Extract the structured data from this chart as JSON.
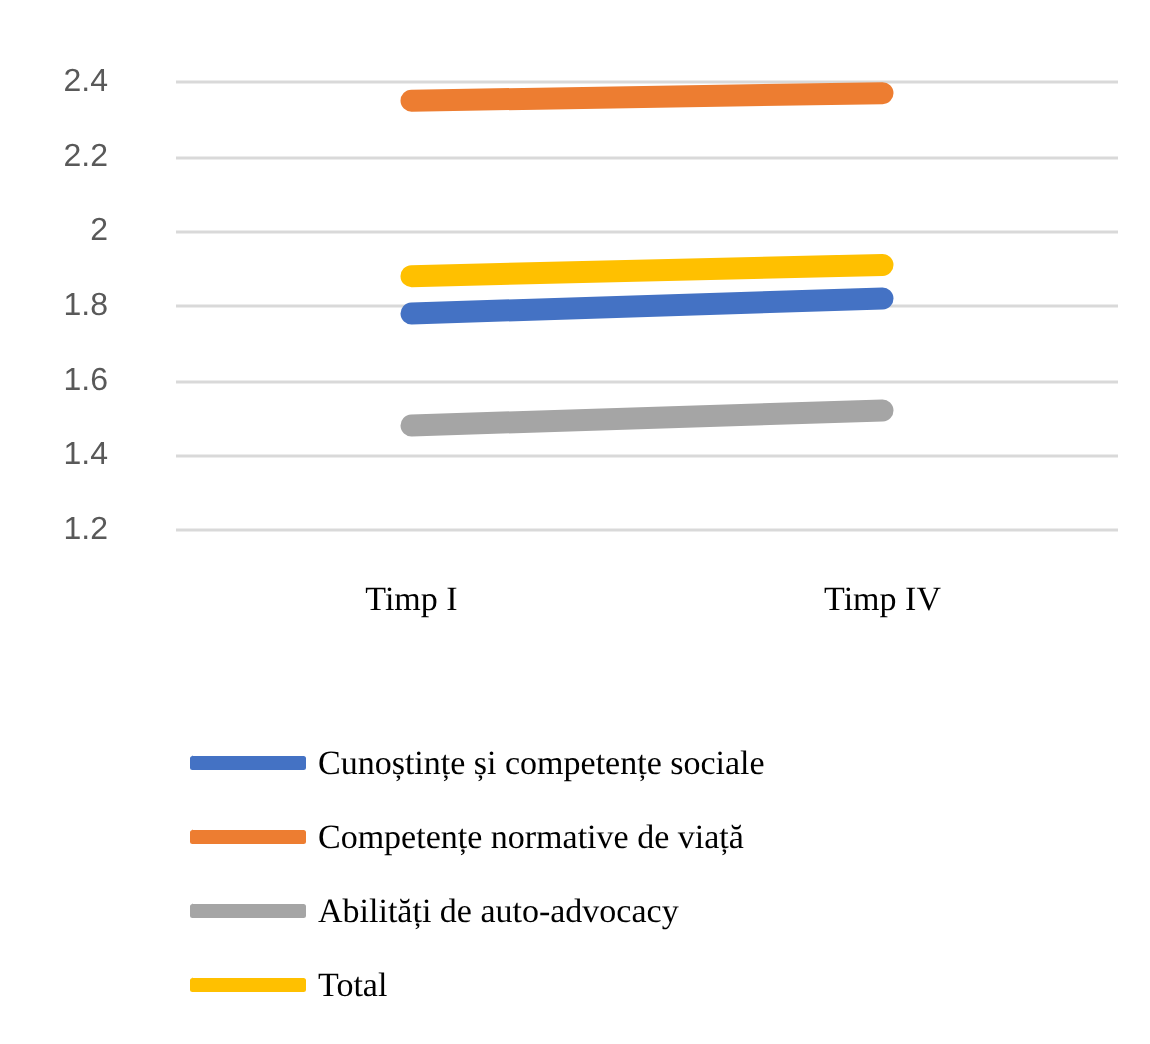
{
  "chart_data": {
    "type": "line",
    "categories": [
      "Timp I",
      "Timp IV"
    ],
    "series": [
      {
        "name": "Cunoștințe și competențe sociale",
        "color": "#4472c4",
        "values": [
          1.78,
          1.82
        ]
      },
      {
        "name": "Competențe normative de viață",
        "color": "#ed7d31",
        "values": [
          2.35,
          2.37
        ]
      },
      {
        "name": "Abilități de auto-advocacy",
        "color": "#a5a5a5",
        "values": [
          1.48,
          1.52
        ]
      },
      {
        "name": "Total",
        "color": "#ffc000",
        "values": [
          1.88,
          1.91
        ]
      }
    ],
    "ylim": [
      1.2,
      2.4
    ],
    "yticks": [
      1.2,
      1.4,
      1.6,
      1.8,
      2,
      2.2,
      2.4
    ],
    "grid": "y",
    "legend": "bottom",
    "line_style": "solid"
  }
}
